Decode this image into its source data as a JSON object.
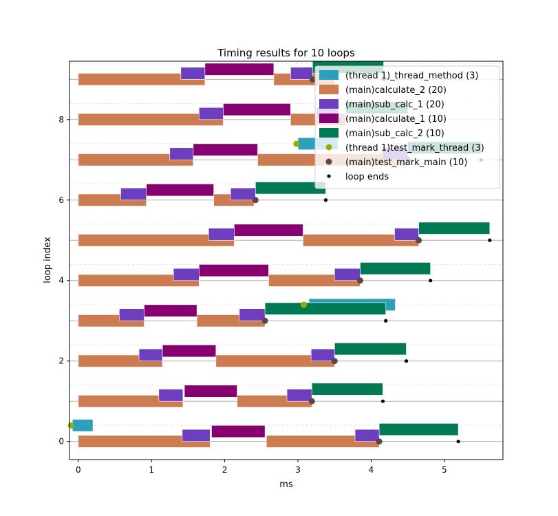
{
  "chart_data": {
    "type": "gantt",
    "title": "Timing results for 10 loops",
    "xlabel": "ms",
    "ylabel": "loop index",
    "xlim": [
      -0.12,
      5.8
    ],
    "ylim": [
      -0.45,
      9.45
    ],
    "xticks": [
      0,
      1,
      2,
      3,
      4,
      5
    ],
    "yticks": [
      0,
      2,
      4,
      6,
      8
    ],
    "grid": "horizontal",
    "legend_position": "top-right",
    "series": [
      {
        "name": "(thread 1)_thread_method (3)",
        "kind": "bar",
        "color": "#2ca0bb",
        "row_offset": 0.4,
        "items": [
          {
            "loop": 0,
            "start": -0.08,
            "end": 0.2
          },
          {
            "loop": 3,
            "start": 3.15,
            "end": 4.33
          },
          {
            "loop": 7,
            "start": 3.0,
            "end": 3.55
          }
        ]
      },
      {
        "name": "(main)calculate_2 (20)",
        "kind": "bar",
        "color": "#cd7c52",
        "row_offset": 0.0,
        "items": [
          {
            "loop": 0,
            "start": 0.0,
            "end": 1.8
          },
          {
            "loop": 0,
            "start": 2.57,
            "end": 4.11
          },
          {
            "loop": 1,
            "start": 0.0,
            "end": 1.43
          },
          {
            "loop": 1,
            "start": 2.17,
            "end": 3.19
          },
          {
            "loop": 2,
            "start": 0.0,
            "end": 1.15
          },
          {
            "loop": 2,
            "start": 1.88,
            "end": 3.5
          },
          {
            "loop": 3,
            "start": 0.0,
            "end": 0.9
          },
          {
            "loop": 3,
            "start": 1.62,
            "end": 2.55
          },
          {
            "loop": 4,
            "start": 0.0,
            "end": 1.65
          },
          {
            "loop": 4,
            "start": 2.6,
            "end": 3.85
          },
          {
            "loop": 5,
            "start": 0.0,
            "end": 2.13
          },
          {
            "loop": 5,
            "start": 3.07,
            "end": 4.65
          },
          {
            "loop": 6,
            "start": 0.0,
            "end": 0.93
          },
          {
            "loop": 6,
            "start": 1.85,
            "end": 2.4
          },
          {
            "loop": 7,
            "start": 0.0,
            "end": 1.57
          },
          {
            "loop": 7,
            "start": 2.45,
            "end": 4.5
          },
          {
            "loop": 8,
            "start": 0.0,
            "end": 1.98
          },
          {
            "loop": 8,
            "start": 2.9,
            "end": 3.65
          },
          {
            "loop": 9,
            "start": 0.0,
            "end": 1.73
          },
          {
            "loop": 9,
            "start": 2.67,
            "end": 3.5
          }
        ]
      },
      {
        "name": "(main)sub_calc_1 (20)",
        "kind": "bar",
        "color": "#6d3fbf",
        "row_offset": 0.15,
        "items": [
          {
            "loop": 0,
            "start": 1.42,
            "end": 1.8
          },
          {
            "loop": 0,
            "start": 3.78,
            "end": 4.11
          },
          {
            "loop": 1,
            "start": 1.1,
            "end": 1.43
          },
          {
            "loop": 1,
            "start": 2.85,
            "end": 3.19
          },
          {
            "loop": 2,
            "start": 0.83,
            "end": 1.15
          },
          {
            "loop": 2,
            "start": 3.18,
            "end": 3.5
          },
          {
            "loop": 3,
            "start": 0.56,
            "end": 0.9
          },
          {
            "loop": 3,
            "start": 2.2,
            "end": 2.55
          },
          {
            "loop": 4,
            "start": 1.3,
            "end": 1.65
          },
          {
            "loop": 4,
            "start": 3.5,
            "end": 3.85
          },
          {
            "loop": 5,
            "start": 1.78,
            "end": 2.13
          },
          {
            "loop": 5,
            "start": 4.32,
            "end": 4.65
          },
          {
            "loop": 6,
            "start": 0.58,
            "end": 0.93
          },
          {
            "loop": 6,
            "start": 2.08,
            "end": 2.42
          },
          {
            "loop": 7,
            "start": 1.25,
            "end": 1.57
          },
          {
            "loop": 7,
            "start": 4.15,
            "end": 4.5
          },
          {
            "loop": 8,
            "start": 1.65,
            "end": 1.98
          },
          {
            "loop": 8,
            "start": 3.25,
            "end": 3.55
          },
          {
            "loop": 9,
            "start": 1.4,
            "end": 1.73
          },
          {
            "loop": 9,
            "start": 2.9,
            "end": 3.2
          }
        ]
      },
      {
        "name": "(main)calculate_1 (10)",
        "kind": "bar",
        "color": "#870070",
        "row_offset": 0.25,
        "items": [
          {
            "loop": 0,
            "start": 1.82,
            "end": 2.55
          },
          {
            "loop": 1,
            "start": 1.45,
            "end": 2.17
          },
          {
            "loop": 2,
            "start": 1.15,
            "end": 1.88
          },
          {
            "loop": 3,
            "start": 0.9,
            "end": 1.62
          },
          {
            "loop": 4,
            "start": 1.65,
            "end": 2.6
          },
          {
            "loop": 5,
            "start": 2.13,
            "end": 3.07
          },
          {
            "loop": 6,
            "start": 0.93,
            "end": 1.85
          },
          {
            "loop": 7,
            "start": 1.57,
            "end": 2.45
          },
          {
            "loop": 8,
            "start": 1.98,
            "end": 2.9
          },
          {
            "loop": 9,
            "start": 1.73,
            "end": 2.67
          }
        ]
      },
      {
        "name": "(main)sub_calc_2 (10)",
        "kind": "bar",
        "color": "#007a55",
        "row_offset": 0.3,
        "items": [
          {
            "loop": 0,
            "start": 4.11,
            "end": 5.19
          },
          {
            "loop": 1,
            "start": 3.19,
            "end": 4.16
          },
          {
            "loop": 2,
            "start": 3.5,
            "end": 4.48
          },
          {
            "loop": 3,
            "start": 2.55,
            "end": 4.2
          },
          {
            "loop": 4,
            "start": 3.85,
            "end": 4.81
          },
          {
            "loop": 5,
            "start": 4.65,
            "end": 5.62
          },
          {
            "loop": 6,
            "start": 2.42,
            "end": 3.38
          },
          {
            "loop": 7,
            "start": 4.5,
            "end": 5.5
          },
          {
            "loop": 8,
            "start": 3.65,
            "end": 4.5
          },
          {
            "loop": 9,
            "start": 3.2,
            "end": 4.17
          }
        ]
      },
      {
        "name": "(thread 1)test_mark_thread (3)",
        "kind": "marker",
        "color": "#9aab00",
        "row_offset": 0.4,
        "items": [
          {
            "loop": 0,
            "x": -0.1
          },
          {
            "loop": 3,
            "x": 3.08
          },
          {
            "loop": 7,
            "x": 2.98
          }
        ]
      },
      {
        "name": "(main)test_mark_main (10)",
        "kind": "marker",
        "color": "#5e4548",
        "row_offset": 0.0,
        "items": [
          {
            "loop": 0,
            "x": 4.11
          },
          {
            "loop": 1,
            "x": 3.19
          },
          {
            "loop": 2,
            "x": 3.5
          },
          {
            "loop": 3,
            "x": 2.55
          },
          {
            "loop": 4,
            "x": 3.85
          },
          {
            "loop": 5,
            "x": 4.65
          },
          {
            "loop": 6,
            "x": 2.42
          },
          {
            "loop": 7,
            "x": 4.5
          },
          {
            "loop": 8,
            "x": 3.55
          },
          {
            "loop": 9,
            "x": 3.2
          }
        ]
      },
      {
        "name": "loop ends",
        "kind": "dot",
        "color": "#000000",
        "row_offset": 0.0,
        "items": [
          {
            "loop": 0,
            "x": 5.19
          },
          {
            "loop": 1,
            "x": 4.16
          },
          {
            "loop": 2,
            "x": 4.48
          },
          {
            "loop": 3,
            "x": 4.2
          },
          {
            "loop": 4,
            "x": 4.81
          },
          {
            "loop": 5,
            "x": 5.62
          },
          {
            "loop": 6,
            "x": 3.38
          },
          {
            "loop": 7,
            "x": 5.5
          },
          {
            "loop": 8,
            "x": 4.5
          },
          {
            "loop": 9,
            "x": 4.17
          }
        ]
      }
    ]
  }
}
